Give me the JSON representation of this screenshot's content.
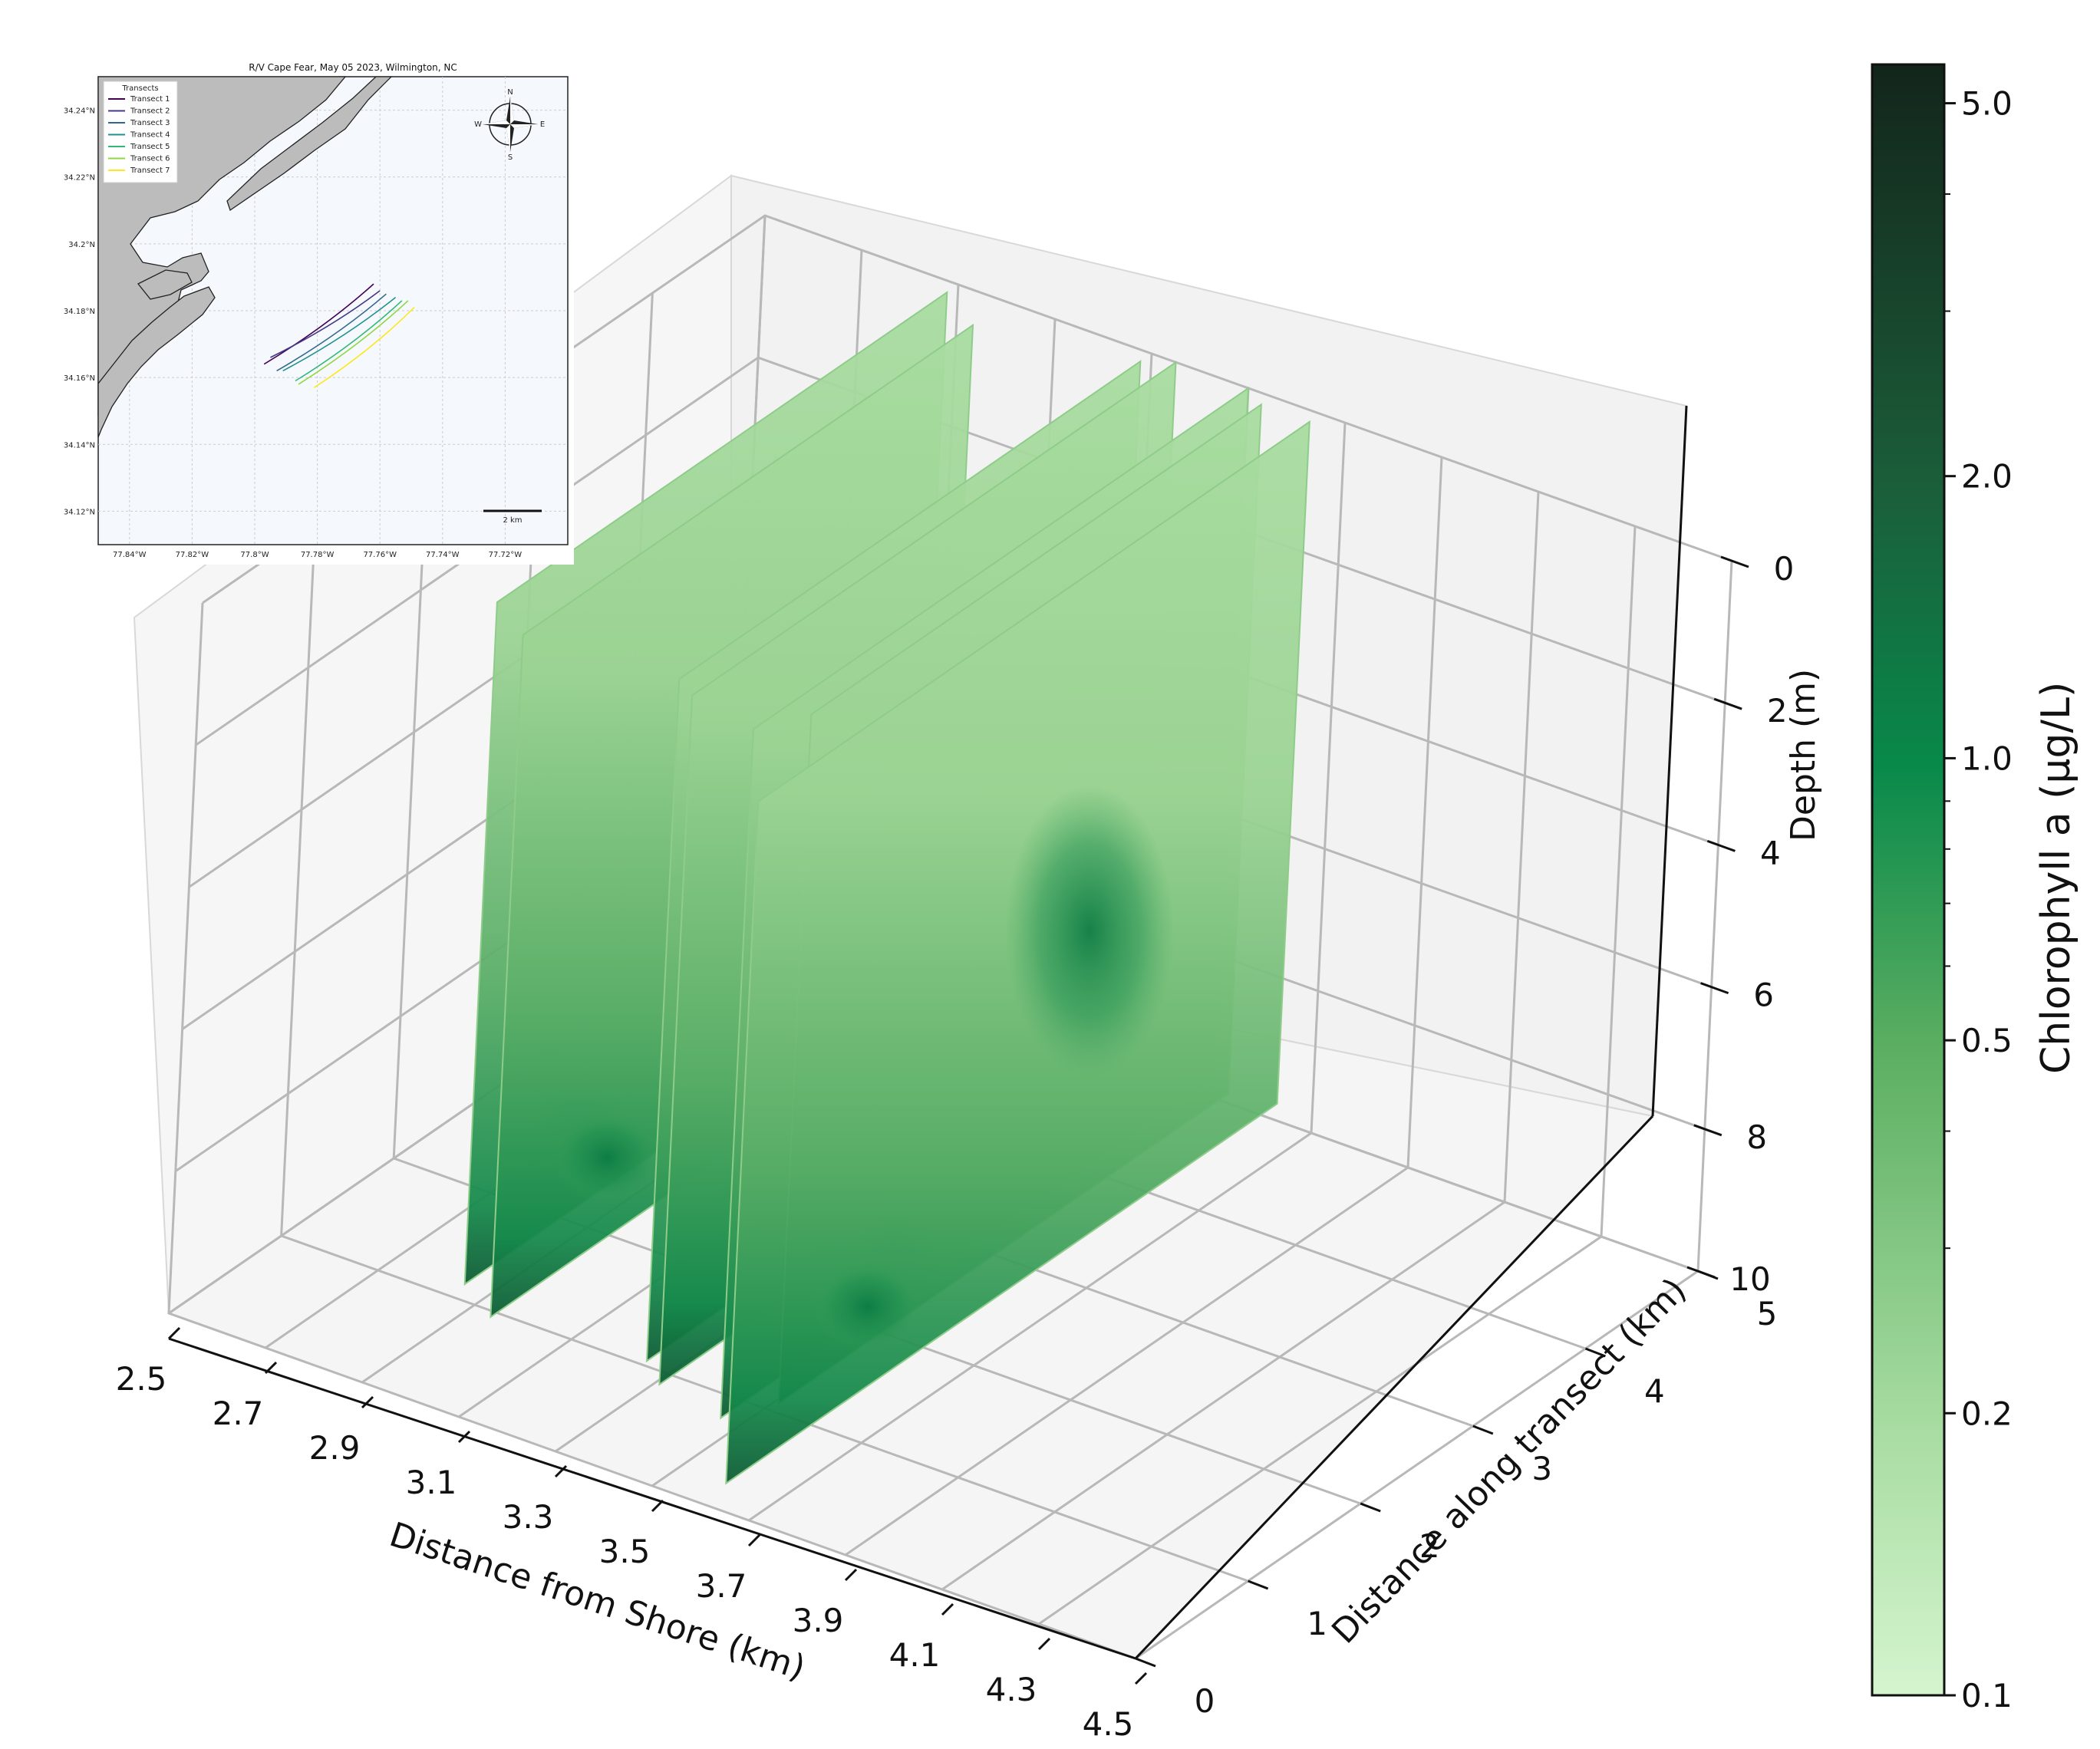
{
  "chart_data": [
    {
      "type": "scatter",
      "subtype": "3d-curtain",
      "title": "",
      "xlabel": "Distance from Shore (km)",
      "ylabel": "Distance along transect (km)",
      "zlabel": "Depth (m)",
      "x_ticks": [
        "2.5",
        "2.7",
        "2.9",
        "3.1",
        "3.3",
        "3.5",
        "3.7",
        "3.9",
        "4.1",
        "4.3",
        "4.5"
      ],
      "y_ticks": [
        "0",
        "1",
        "2",
        "3",
        "4",
        "5"
      ],
      "z_ticks": [
        "0",
        "2",
        "4",
        "6",
        "8",
        "10"
      ],
      "xlim": [
        2.5,
        4.5
      ],
      "ylim": [
        0,
        5
      ],
      "zlim": [
        10,
        0
      ],
      "colorbar": {
        "label": "Chlorophyll a (μg/L)",
        "scale": "log",
        "range": [
          0.1,
          5.5
        ],
        "ticks": [
          "0.1",
          "0.2",
          "0.5",
          "1.0",
          "2.0",
          "5.0"
        ],
        "colormap": [
          "#d5f5cf",
          "#a6dba0",
          "#5aae61",
          "#08894a",
          "#1b5e3a",
          "#13251b"
        ]
      },
      "series": [
        {
          "name": "Transect 1",
          "x": 2.9,
          "y_range": [
            0.9,
            4.9
          ],
          "max_depth": 9.6,
          "surface_chl": 0.17,
          "max_chl": 2.5
        },
        {
          "name": "Transect 2",
          "x": 3.0,
          "y_range": [
            0.7,
            4.7
          ],
          "max_depth": 9.6,
          "surface_chl": 0.17,
          "max_chl": 2.0
        },
        {
          "name": "Transect 3",
          "x": 3.3,
          "y_range": [
            0.8,
            4.9
          ],
          "max_depth": 9.6,
          "surface_chl": 0.16,
          "max_chl": 1.8
        },
        {
          "name": "Transect 4",
          "x": 3.35,
          "y_range": [
            0.7,
            5.0
          ],
          "max_depth": 9.7,
          "surface_chl": 0.15,
          "max_chl": 1.5
        },
        {
          "name": "Transect 5",
          "x": 3.5,
          "y_range": [
            0.6,
            5.0
          ],
          "max_depth": 9.7,
          "surface_chl": 0.15,
          "max_chl": 4.0
        },
        {
          "name": "Transect 6",
          "x": 3.55,
          "y_range": [
            0.9,
            4.9
          ],
          "max_depth": 9.7,
          "surface_chl": 0.16,
          "max_chl": 1.5
        },
        {
          "name": "Transect 7",
          "x": 3.65,
          "y_range": [
            0.0,
            4.9
          ],
          "max_depth": 9.6,
          "surface_chl": 0.17,
          "max_chl": 1.3
        }
      ]
    },
    {
      "type": "map",
      "title": "R/V Cape Fear, May 05 2023, Wilmington, NC",
      "legend_title": "Transects",
      "legend": [
        "Transect 1",
        "Transect 2",
        "Transect 3",
        "Transect 4",
        "Transect 5",
        "Transect 6",
        "Transect 7"
      ],
      "series_colors": [
        "#440154",
        "#443983",
        "#31688e",
        "#21918c",
        "#35b779",
        "#90d743",
        "#fde725"
      ],
      "lat_ticks": [
        "34.24°N",
        "34.22°N",
        "34.2°N",
        "34.18°N",
        "34.16°N",
        "34.14°N",
        "34.12°N"
      ],
      "lon_ticks": [
        "77.84°W",
        "77.82°W",
        "77.8°W",
        "77.78°W",
        "77.76°W",
        "77.74°W",
        "77.72°W"
      ],
      "lat_range": [
        34.11,
        34.25
      ],
      "lon_range": [
        -77.85,
        -77.7
      ],
      "scale_bar": "2 km",
      "compass": [
        "N",
        "E",
        "S",
        "W"
      ],
      "transects": [
        {
          "start": [
            -77.797,
            34.164
          ],
          "end": [
            -77.762,
            34.188
          ]
        },
        {
          "start": [
            -77.795,
            34.166
          ],
          "end": [
            -77.76,
            34.186
          ]
        },
        {
          "start": [
            -77.793,
            34.162
          ],
          "end": [
            -77.758,
            34.185
          ]
        },
        {
          "start": [
            -77.791,
            34.162
          ],
          "end": [
            -77.755,
            34.184
          ]
        },
        {
          "start": [
            -77.787,
            34.159
          ],
          "end": [
            -77.753,
            34.183
          ]
        },
        {
          "start": [
            -77.786,
            34.158
          ],
          "end": [
            -77.751,
            34.183
          ]
        },
        {
          "start": [
            -77.781,
            34.157
          ],
          "end": [
            -77.749,
            34.181
          ]
        }
      ]
    }
  ]
}
